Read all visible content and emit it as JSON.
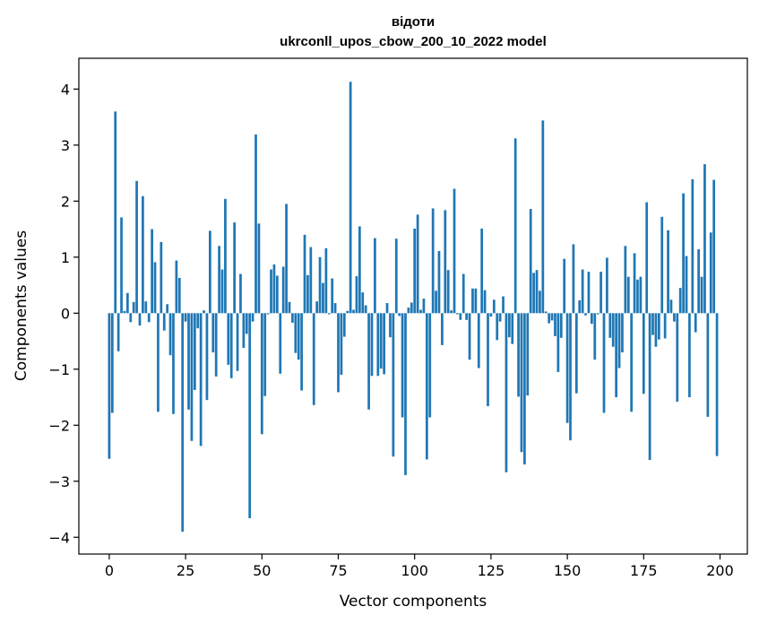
{
  "chart_data": {
    "type": "bar",
    "title_line1": "відоти",
    "title_line2": "ukrconll_upos_cbow_200_10_2022 model",
    "xlabel": "Vector components",
    "ylabel": "Components values",
    "xlim": [
      -9.95,
      208.95
    ],
    "ylim": [
      -4.3,
      4.55
    ],
    "xticks": [
      0,
      25,
      50,
      75,
      100,
      125,
      150,
      175,
      200
    ],
    "yticks": [
      -4,
      -3,
      -2,
      -1,
      0,
      1,
      2,
      3,
      4
    ],
    "ytick_labels": [
      "−4",
      "−3",
      "−2",
      "−1",
      "0",
      "1",
      "2",
      "3",
      "4"
    ],
    "bar_color": "#1f77b4",
    "values": [
      -2.6,
      -1.78,
      3.6,
      -0.68,
      1.71,
      0.04,
      0.36,
      -0.16,
      0.2,
      2.36,
      -0.22,
      2.09,
      0.21,
      -0.16,
      1.5,
      0.91,
      -1.76,
      1.27,
      -0.31,
      0.16,
      -0.75,
      -1.8,
      0.94,
      0.63,
      -3.9,
      -0.15,
      -1.72,
      -2.28,
      -1.37,
      -0.27,
      -2.37,
      0.05,
      -1.55,
      1.47,
      -0.7,
      -1.13,
      1.2,
      0.78,
      2.04,
      -0.92,
      -1.16,
      1.62,
      -1.03,
      0.7,
      -0.62,
      -0.37,
      -3.66,
      -0.15,
      3.19,
      1.6,
      -2.16,
      -1.48,
      -0.02,
      0.78,
      0.87,
      0.67,
      -1.08,
      0.83,
      1.95,
      0.2,
      -0.17,
      -0.71,
      -0.83,
      -1.38,
      1.4,
      0.68,
      1.18,
      -1.64,
      0.21,
      1.0,
      0.54,
      1.16,
      -0.02,
      0.62,
      0.18,
      -1.41,
      -1.1,
      -0.42,
      0.04,
      4.13,
      0.06,
      0.66,
      1.55,
      0.37,
      0.14,
      -1.72,
      -1.12,
      1.34,
      -1.12,
      -0.99,
      -1.09,
      0.18,
      -0.43,
      -2.56,
      1.33,
      -0.05,
      -1.86,
      -2.89,
      0.1,
      0.19,
      1.51,
      1.76,
      0.06,
      0.26,
      -2.61,
      -1.86,
      1.87,
      0.4,
      1.11,
      -0.57,
      1.84,
      0.77,
      0.05,
      2.22,
      -0.02,
      -0.12,
      0.7,
      -0.12,
      -0.83,
      0.44,
      0.44,
      -0.98,
      1.51,
      0.41,
      -1.66,
      -0.06,
      0.24,
      -0.48,
      -0.15,
      0.3,
      -2.84,
      -0.43,
      -0.55,
      3.12,
      -1.49,
      -2.48,
      -2.7,
      -1.47,
      1.86,
      0.72,
      0.77,
      0.4,
      3.44,
      0.03,
      -0.18,
      -0.13,
      -0.41,
      -1.05,
      -0.44,
      0.97,
      -1.96,
      -2.27,
      1.23,
      -1.43,
      0.23,
      0.78,
      -0.04,
      0.74,
      -0.19,
      -0.83,
      -0.02,
      0.74,
      -1.78,
      0.99,
      -0.44,
      -0.6,
      -1.5,
      -0.98,
      -0.7,
      1.2,
      0.65,
      -1.76,
      1.07,
      0.6,
      0.65,
      -1.44,
      1.98,
      -2.62,
      -0.39,
      -0.6,
      -0.47,
      1.72,
      -0.45,
      1.48,
      0.24,
      -0.15,
      -1.58,
      0.45,
      2.14,
      1.02,
      -1.5,
      2.39,
      -0.34,
      1.14,
      0.65,
      2.66,
      -1.85,
      1.44,
      2.38,
      -2.55
    ]
  }
}
